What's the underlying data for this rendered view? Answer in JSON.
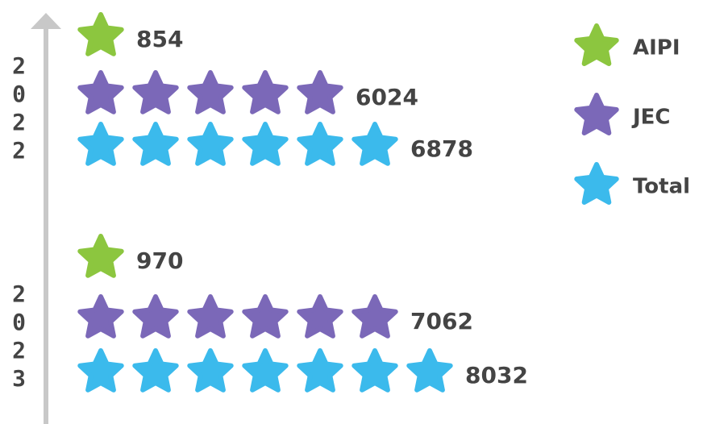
{
  "chart_data": {
    "type": "pictograph",
    "categories": [
      "2022",
      "2023"
    ],
    "series": [
      {
        "name": "AIPI",
        "color": "#8cc63f",
        "values": [
          854,
          970
        ]
      },
      {
        "name": "JEC",
        "color": "#7b68b8",
        "values": [
          6024,
          7062
        ]
      },
      {
        "name": "Total",
        "color": "#3bbaec",
        "values": [
          6878,
          8032
        ]
      }
    ],
    "legend": "top-right"
  }
}
